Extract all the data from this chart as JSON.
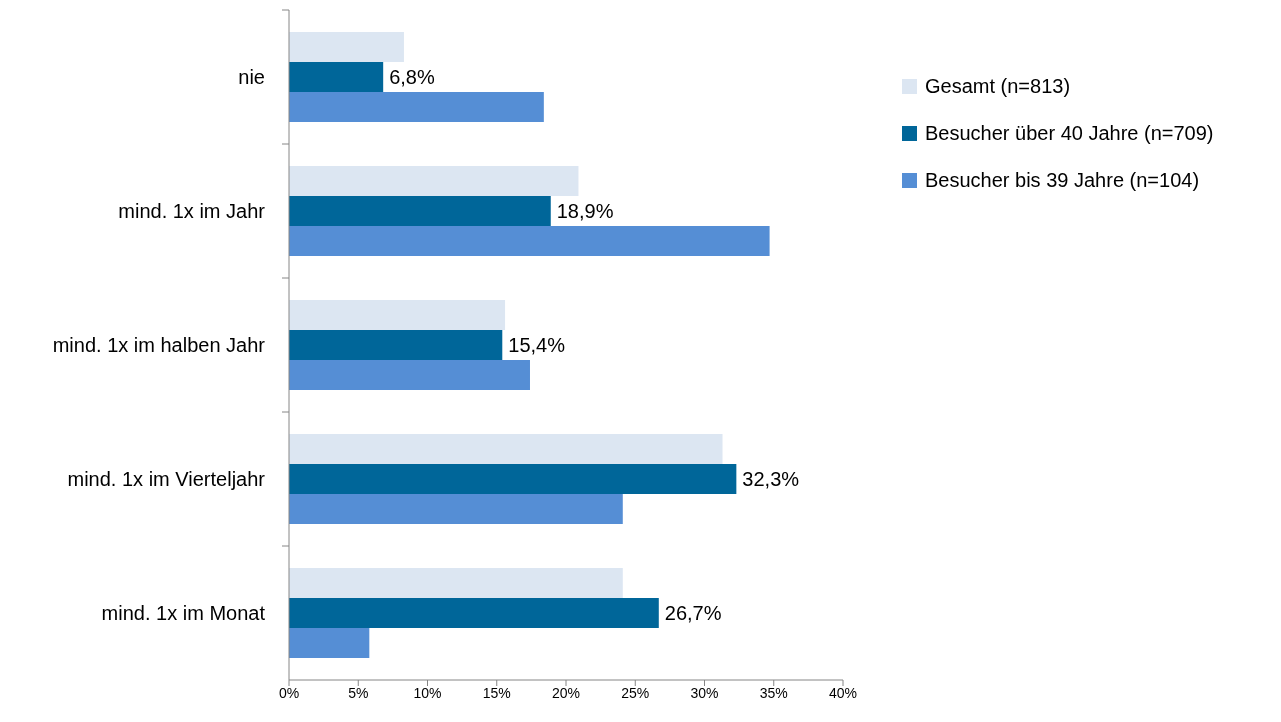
{
  "chart_data": {
    "type": "bar",
    "orientation": "horizontal",
    "categories": [
      "nie",
      "mind. 1x im Jahr",
      "mind. 1x im halben Jahr",
      "mind. 1x im Vierteljahr",
      "mind. 1x im Monat"
    ],
    "series": [
      {
        "name": "Gesamt (n=813)",
        "color": "#dce6f2",
        "values": [
          8.3,
          20.9,
          15.6,
          31.3,
          24.1
        ]
      },
      {
        "name": "Besucher über 40 Jahre (n=709)",
        "color": "#006699",
        "values": [
          6.8,
          18.9,
          15.4,
          32.3,
          26.7
        ],
        "value_labels": [
          "6,8%",
          "18,9%",
          "15,4%",
          "32,3%",
          "26,7%"
        ]
      },
      {
        "name": "Besucher bis 39 Jahre (n=104)",
        "color": "#558ed5",
        "values": [
          18.4,
          34.7,
          17.4,
          24.1,
          5.8
        ]
      }
    ],
    "xlim": [
      0,
      40
    ],
    "xticks": [
      {
        "value": 0,
        "label": "0%"
      },
      {
        "value": 5,
        "label": "5%"
      },
      {
        "value": 10,
        "label": "10%"
      },
      {
        "value": 15,
        "label": "15%"
      },
      {
        "value": 20,
        "label": "20%"
      },
      {
        "value": 25,
        "label": "25%"
      },
      {
        "value": 30,
        "label": "30%"
      },
      {
        "value": 35,
        "label": "35%"
      },
      {
        "value": 40,
        "label": "40%"
      }
    ],
    "legend": "top right"
  }
}
